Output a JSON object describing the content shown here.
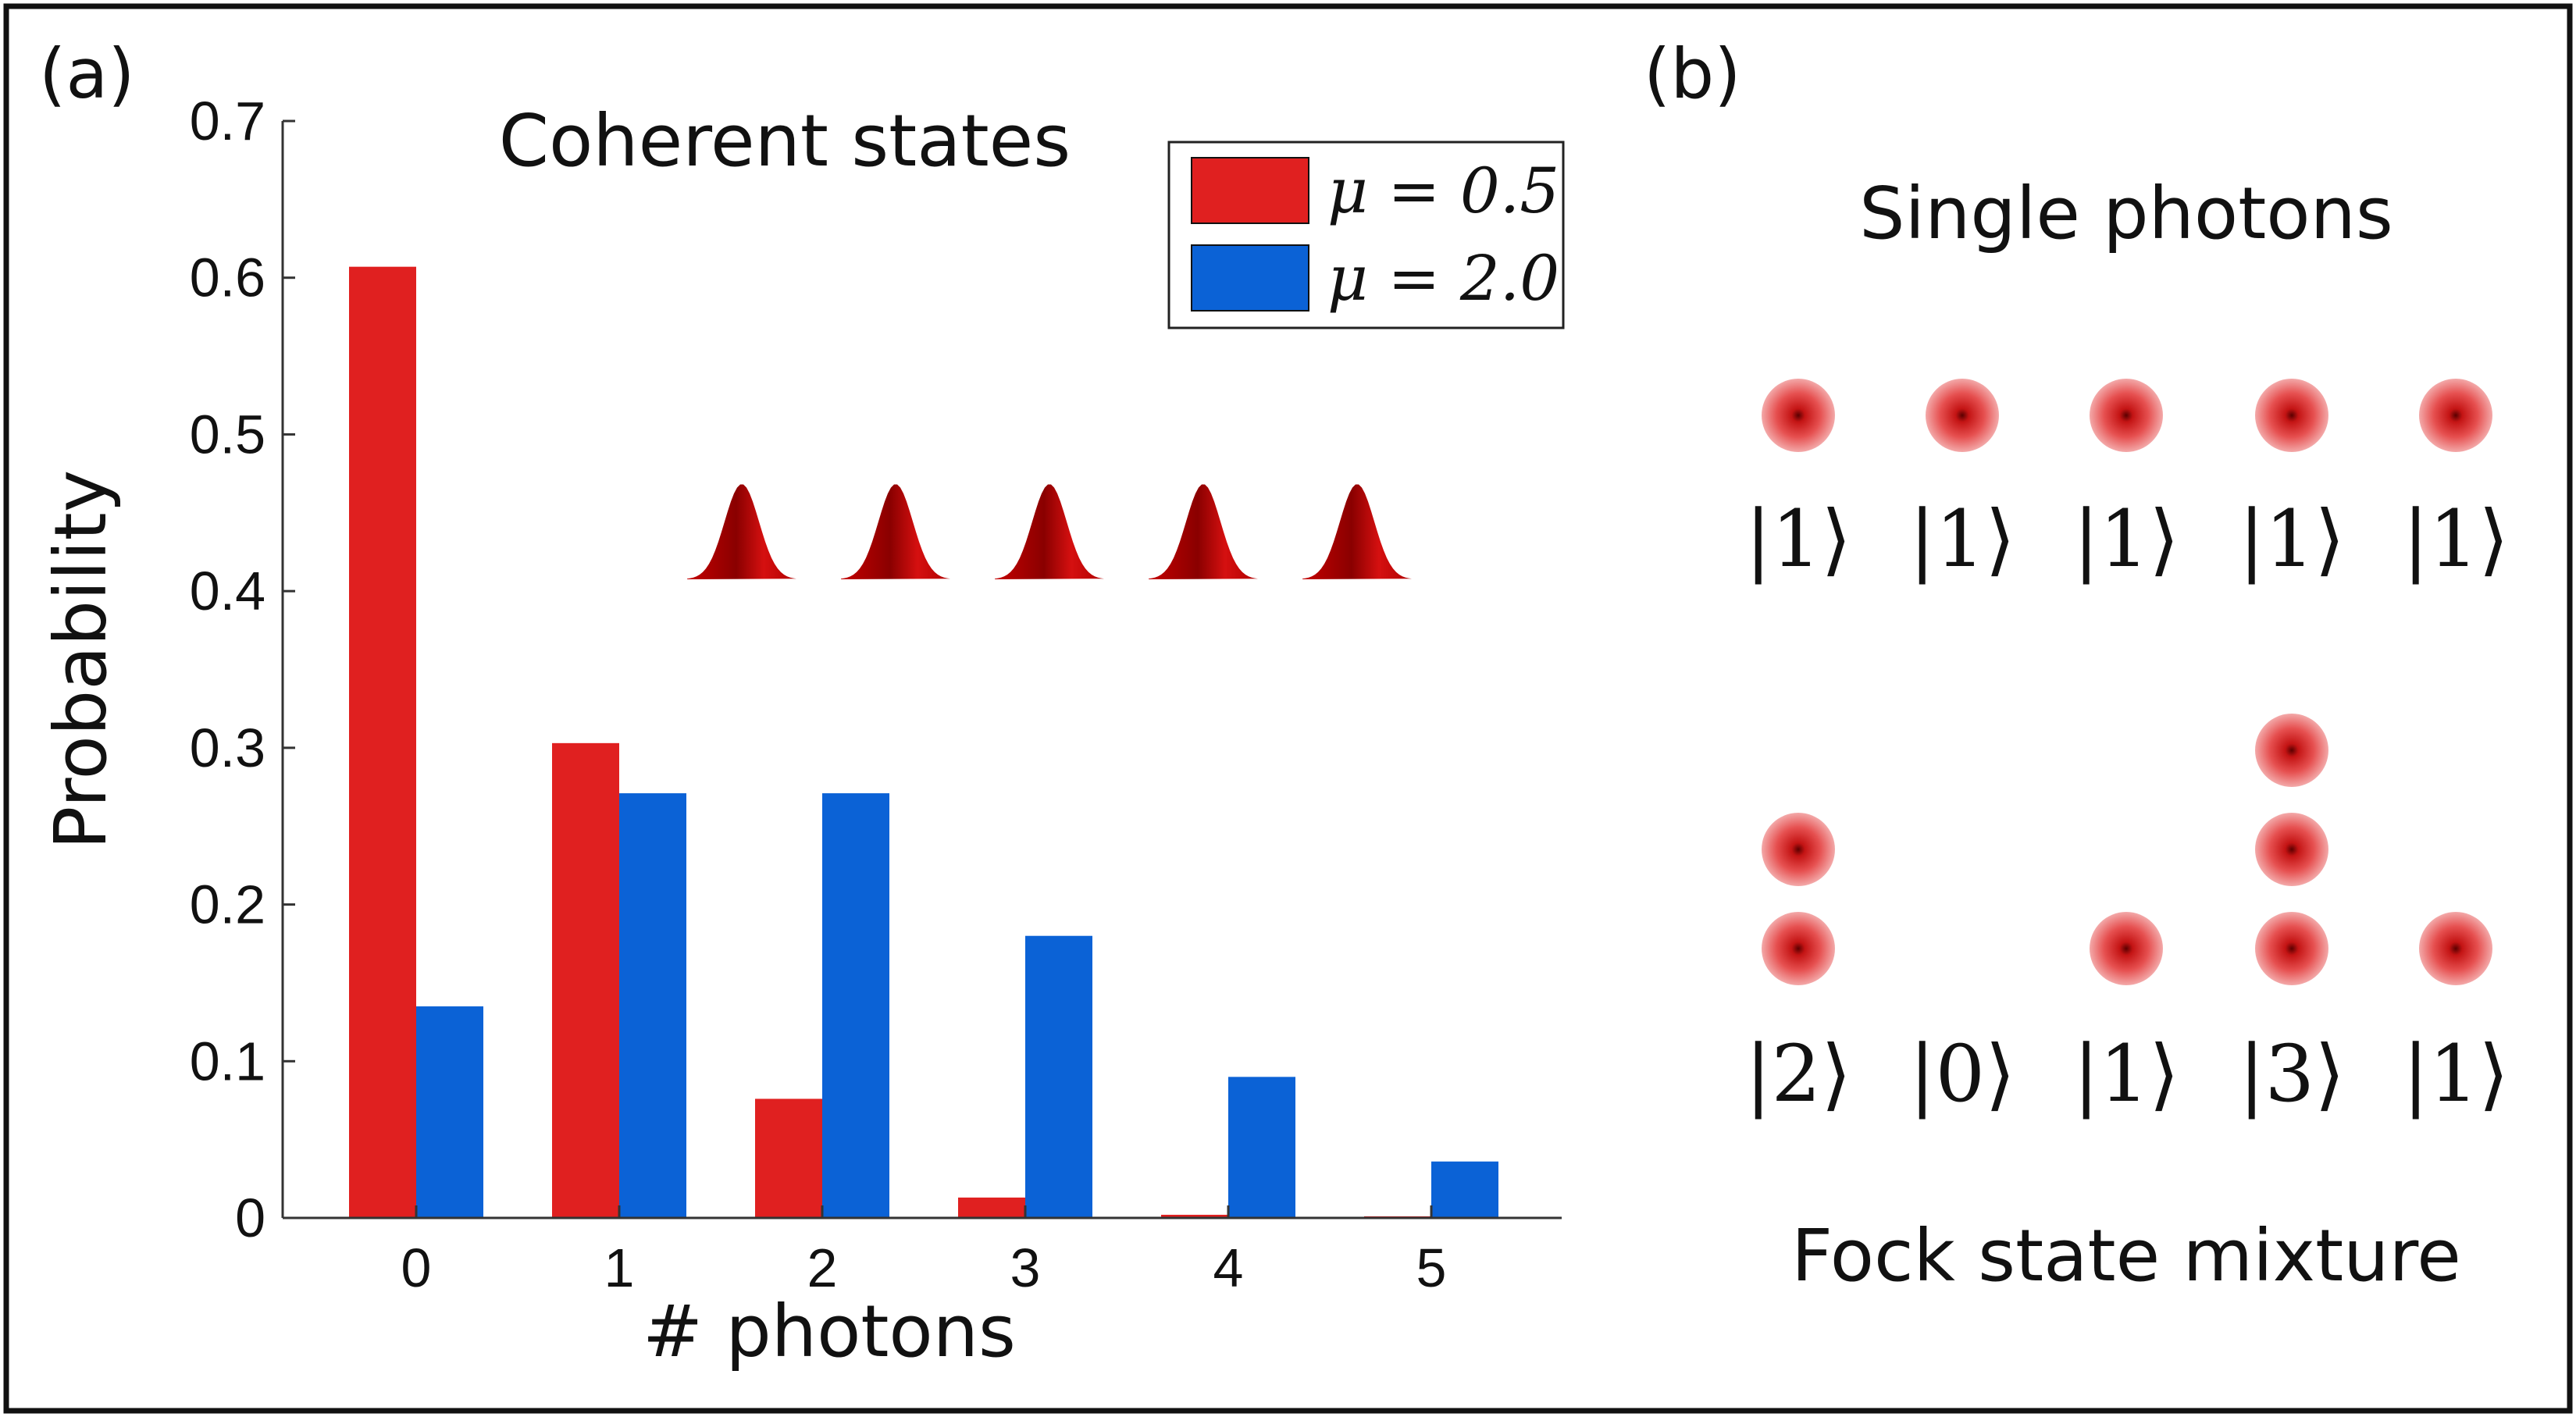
{
  "panel_a": {
    "label": "(a)",
    "title": "Coherent states",
    "pulse_count": 5
  },
  "panel_b": {
    "label": "(b)",
    "single_title": "Single photons",
    "single_kets": [
      "|1⟩",
      "|1⟩",
      "|1⟩",
      "|1⟩",
      "|1⟩"
    ],
    "single_counts": [
      1,
      1,
      1,
      1,
      1
    ],
    "fock_title": "Fock state mixture",
    "fock_kets": [
      "|2⟩",
      "|0⟩",
      "|1⟩",
      "|3⟩",
      "|1⟩"
    ],
    "fock_counts": [
      2,
      0,
      1,
      3,
      1
    ]
  },
  "colors": {
    "red": "#e02020",
    "blue": "#0b62d6",
    "axis": "#333333",
    "pulse": "#d10a0a"
  },
  "chart_data": {
    "type": "bar",
    "title": "Coherent states",
    "xlabel": "# photons",
    "ylabel": "Probability",
    "categories": [
      "0",
      "1",
      "2",
      "3",
      "4",
      "5"
    ],
    "yticks": [
      "0",
      "0.1",
      "0.2",
      "0.3",
      "0.4",
      "0.5",
      "0.6",
      "0.7"
    ],
    "ylim": [
      0,
      0.7
    ],
    "legend_position": "top-right",
    "series": [
      {
        "name": "μ = 0.5",
        "values": [
          0.607,
          0.303,
          0.076,
          0.013,
          0.002,
          0.0002
        ]
      },
      {
        "name": "μ = 2.0",
        "values": [
          0.135,
          0.271,
          0.271,
          0.18,
          0.09,
          0.036
        ]
      }
    ]
  }
}
